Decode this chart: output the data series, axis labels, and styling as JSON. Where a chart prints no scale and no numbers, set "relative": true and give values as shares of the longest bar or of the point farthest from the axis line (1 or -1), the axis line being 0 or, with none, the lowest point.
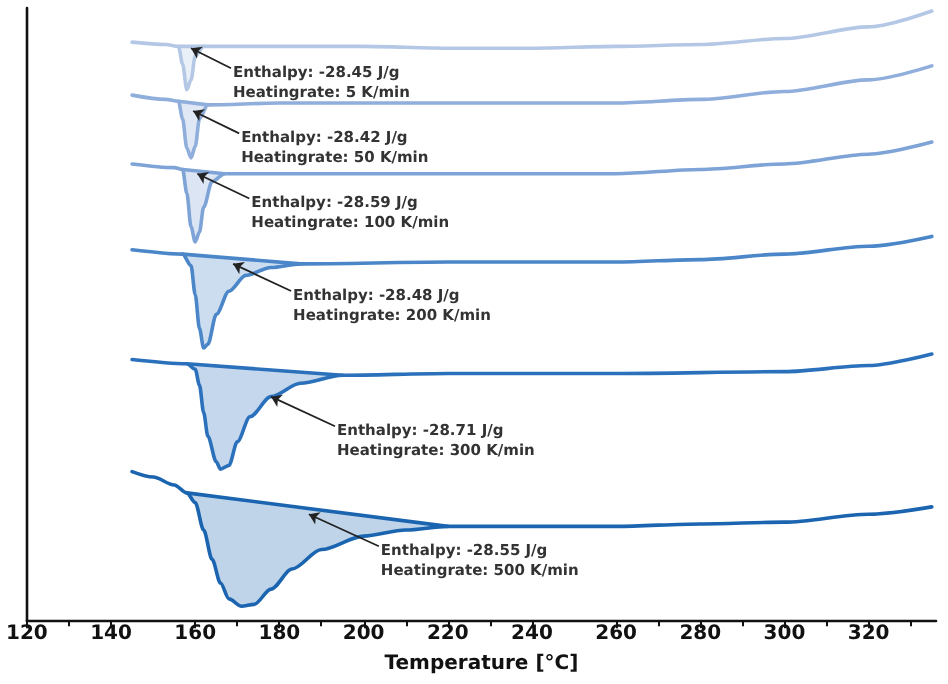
{
  "chart_data": {
    "type": "line",
    "relative": true,
    "xlabel": "Temperature [°C]",
    "xlim": [
      120,
      336
    ],
    "xticks": [
      120,
      140,
      160,
      180,
      200,
      220,
      240,
      260,
      280,
      300,
      320
    ],
    "grid": false,
    "marker": "none",
    "line_style": "solid",
    "series": [
      {
        "color": "#b4c8e6",
        "x": [
          145,
          153,
          156,
          157,
          158,
          159,
          160,
          162,
          180,
          200,
          220,
          240,
          260,
          280,
          300,
          320,
          335
        ],
        "values": [
          0.949,
          0.945,
          0.942,
          0.913,
          0.871,
          0.887,
          0.926,
          0.942,
          0.942,
          0.942,
          0.939,
          0.939,
          0.942,
          0.945,
          0.955,
          0.974,
          1.0
        ],
        "lower": [
          null,
          null,
          0.942,
          0.913,
          0.871,
          0.887,
          0.926,
          0.942,
          null,
          null,
          null,
          null,
          null,
          null,
          null,
          null,
          null
        ],
        "upper": [
          null,
          null,
          0.942,
          0.942,
          0.942,
          0.942,
          0.942,
          0.942,
          null,
          null,
          null,
          null,
          null,
          null,
          null,
          null,
          null
        ]
      },
      {
        "color": "#90aedc",
        "x": [
          145,
          153,
          156,
          157,
          158,
          159,
          160,
          161,
          163,
          180,
          220,
          260,
          280,
          300,
          320,
          335
        ],
        "values": [
          0.862,
          0.855,
          0.852,
          0.823,
          0.775,
          0.759,
          0.778,
          0.823,
          0.846,
          0.849,
          0.849,
          0.849,
          0.855,
          0.868,
          0.887,
          0.91
        ],
        "lower": [
          null,
          null,
          0.852,
          0.823,
          0.775,
          0.759,
          0.778,
          0.823,
          0.846,
          null,
          null,
          null,
          null,
          null,
          null,
          null
        ],
        "upper": [
          null,
          null,
          0.852,
          0.851,
          0.85,
          0.849,
          0.848,
          0.847,
          0.846,
          null,
          null,
          null,
          null,
          null,
          null,
          null
        ]
      },
      {
        "color": "#7ea3d6",
        "x": [
          145,
          155,
          157,
          158,
          159,
          160,
          161,
          162,
          164,
          167,
          180,
          220,
          260,
          280,
          300,
          320,
          335
        ],
        "values": [
          0.749,
          0.743,
          0.74,
          0.701,
          0.646,
          0.621,
          0.637,
          0.678,
          0.72,
          0.733,
          0.733,
          0.733,
          0.733,
          0.74,
          0.749,
          0.765,
          0.785
        ],
        "lower": [
          null,
          null,
          0.74,
          0.701,
          0.646,
          0.621,
          0.637,
          0.678,
          0.72,
          0.733,
          null,
          null,
          null,
          null,
          null,
          null,
          null
        ],
        "upper": [
          null,
          null,
          0.74,
          0.739,
          0.739,
          0.738,
          0.737,
          0.737,
          0.735,
          0.733,
          null,
          null,
          null,
          null,
          null,
          null,
          null
        ]
      },
      {
        "color": "#4a86c8",
        "x": [
          145,
          157,
          159,
          160,
          161,
          162,
          163,
          165,
          168,
          172,
          178,
          185,
          220,
          260,
          280,
          300,
          320,
          335
        ],
        "values": [
          0.608,
          0.601,
          0.582,
          0.534,
          0.479,
          0.447,
          0.453,
          0.502,
          0.54,
          0.566,
          0.579,
          0.585,
          0.588,
          0.588,
          0.592,
          0.601,
          0.614,
          0.63
        ],
        "lower": [
          null,
          0.601,
          0.582,
          0.534,
          0.479,
          0.447,
          0.453,
          0.502,
          0.54,
          0.566,
          0.579,
          0.585,
          null,
          null,
          null,
          null,
          null,
          null
        ],
        "upper": [
          null,
          0.601,
          0.6,
          0.599,
          0.599,
          0.598,
          0.598,
          0.596,
          0.595,
          0.592,
          0.589,
          0.585,
          null,
          null,
          null,
          null,
          null,
          null
        ]
      },
      {
        "color": "#2a70bb",
        "x": [
          145,
          158,
          160,
          161,
          162,
          163,
          165,
          166,
          168,
          170,
          173,
          178,
          185,
          195,
          220,
          260,
          300,
          320,
          335
        ],
        "values": [
          0.428,
          0.421,
          0.412,
          0.386,
          0.341,
          0.302,
          0.26,
          0.248,
          0.254,
          0.293,
          0.334,
          0.367,
          0.389,
          0.402,
          0.405,
          0.405,
          0.408,
          0.418,
          0.437
        ],
        "lower": [
          null,
          0.421,
          0.412,
          0.386,
          0.341,
          0.302,
          0.26,
          0.248,
          0.254,
          0.293,
          0.334,
          0.367,
          0.389,
          0.402,
          null,
          null,
          null,
          null,
          null
        ],
        "upper": [
          null,
          0.421,
          0.42,
          0.419,
          0.419,
          0.418,
          0.417,
          0.417,
          0.416,
          0.415,
          0.413,
          0.411,
          0.407,
          0.402,
          null,
          null,
          null,
          null,
          null
        ]
      },
      {
        "color": "#1a64b0",
        "x": [
          145,
          150,
          155,
          158,
          160,
          162,
          164,
          166,
          168,
          171,
          174,
          178,
          183,
          190,
          200,
          210,
          220,
          240,
          260,
          280,
          300,
          320,
          335
        ],
        "values": [
          0.244,
          0.235,
          0.222,
          0.209,
          0.193,
          0.148,
          0.1,
          0.061,
          0.035,
          0.023,
          0.026,
          0.051,
          0.084,
          0.116,
          0.138,
          0.148,
          0.154,
          0.154,
          0.154,
          0.158,
          0.161,
          0.174,
          0.186
        ],
        "lower": [
          null,
          null,
          null,
          0.209,
          0.193,
          0.148,
          0.1,
          0.061,
          0.035,
          0.023,
          0.026,
          0.051,
          0.084,
          0.116,
          0.138,
          0.148,
          0.154,
          null,
          null,
          null,
          null,
          null,
          null
        ],
        "upper": [
          null,
          null,
          null,
          0.209,
          0.207,
          0.205,
          0.204,
          0.202,
          0.2,
          0.197,
          0.195,
          0.191,
          0.187,
          0.181,
          0.172,
          0.163,
          0.154,
          null,
          null,
          null,
          null,
          null,
          null
        ]
      },
      {
        "color": "#b4c8e6",
        "x": [
          156,
          162
        ],
        "values": [
          0.942,
          0.942
        ]
      },
      {
        "color": "#90aedc",
        "x": [
          156,
          163
        ],
        "values": [
          0.852,
          0.846
        ]
      },
      {
        "color": "#7ea3d6",
        "x": [
          157,
          167
        ],
        "values": [
          0.74,
          0.733
        ]
      },
      {
        "color": "#4a86c8",
        "x": [
          157,
          185
        ],
        "values": [
          0.601,
          0.585
        ]
      },
      {
        "color": "#2a70bb",
        "x": [
          158,
          195
        ],
        "values": [
          0.421,
          0.402
        ]
      },
      {
        "color": "#1a64b0",
        "x": [
          158,
          220
        ],
        "values": [
          0.209,
          0.154
        ]
      }
    ],
    "annotations": [
      {
        "text": "Enthalpy: -28.45 J/g\nHeatingrate: 5 K/min",
        "x": 159,
        "y": 0.939
      },
      {
        "text": "Enthalpy: -28.42 J/g\nHeatingrate: 50 K/min",
        "x": 159.5,
        "y": 0.836
      },
      {
        "text": "Enthalpy: -28.59 J/g\nHeatingrate: 100 K/min",
        "x": 160.5,
        "y": 0.733
      },
      {
        "text": "Enthalpy: -28.48 J/g\nHeatingrate: 200 K/min",
        "x": 169,
        "y": 0.585
      },
      {
        "text": "Enthalpy: -28.71 J/g\nHeatingrate: 300 K/min",
        "x": 178,
        "y": 0.367
      },
      {
        "text": "Enthalpy: -28.55 J/g\nHeatingrate: 500 K/min",
        "x": 187,
        "y": 0.174
      }
    ]
  }
}
